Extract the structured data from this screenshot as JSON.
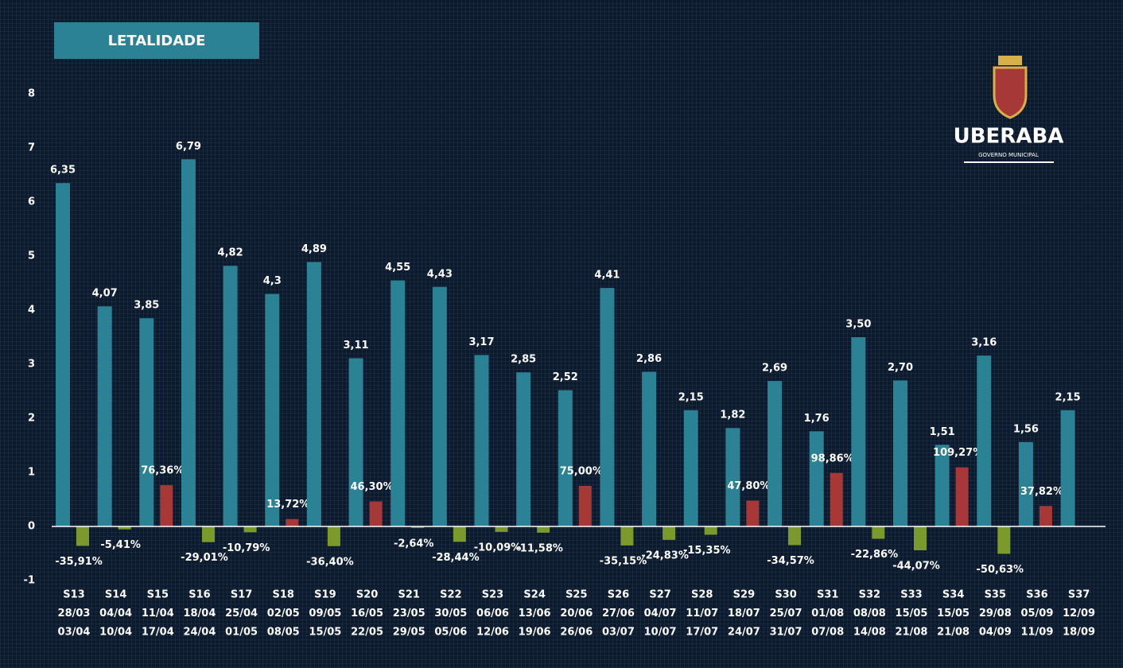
{
  "chart_data": {
    "type": "bar",
    "title": "LETALIDADE",
    "logo": {
      "name": "UBERABA",
      "subtitle": "GOVERNO MUNICIPAL"
    },
    "categories": [
      "S13",
      "S14",
      "S15",
      "S16",
      "S17",
      "S18",
      "S19",
      "S20",
      "S21",
      "S22",
      "S23",
      "S24",
      "S25",
      "S26",
      "S27",
      "S28",
      "S29",
      "S30",
      "S31",
      "S32",
      "S33",
      "S34",
      "S35",
      "S36",
      "S37"
    ],
    "periods_start": [
      "28/03",
      "04/04",
      "11/04",
      "18/04",
      "25/04",
      "02/05",
      "09/05",
      "16/05",
      "23/05",
      "30/05",
      "06/06",
      "13/06",
      "20/06",
      "27/06",
      "04/07",
      "11/07",
      "18/07",
      "25/07",
      "01/08",
      "08/08",
      "15/05",
      "15/05",
      "29/08",
      "05/09",
      "12/09"
    ],
    "periods_end": [
      "03/04",
      "10/04",
      "17/04",
      "24/04",
      "01/05",
      "08/05",
      "15/05",
      "22/05",
      "29/05",
      "05/06",
      "12/06",
      "19/06",
      "26/06",
      "03/07",
      "10/07",
      "17/07",
      "24/07",
      "31/07",
      "07/08",
      "14/08",
      "21/08",
      "21/08",
      "04/09",
      "11/09",
      "18/09"
    ],
    "series": [
      {
        "color": "#2a8294",
        "values": [
          6.35,
          4.07,
          3.85,
          6.79,
          4.82,
          4.3,
          4.89,
          3.11,
          4.55,
          4.43,
          3.17,
          2.85,
          2.52,
          4.41,
          2.86,
          2.15,
          1.82,
          2.69,
          1.76,
          3.5,
          2.7,
          1.51,
          3.16,
          1.56,
          2.15
        ],
        "value_labels": [
          "6,35",
          "4,07",
          "3,85",
          "6,79",
          "4,82",
          "4,3",
          "4,89",
          "3,11",
          "4,55",
          "4,43",
          "3,17",
          "2,85",
          "2,52",
          "4,41",
          "2,86",
          "2,15",
          "1,82",
          "2,69",
          "1,76",
          "3,50",
          "2,70",
          "1,51",
          "3,16",
          "1,56",
          "2,15"
        ]
      },
      {
        "color": "#a63838",
        "negative_color": "#7c9a2c",
        "values": [
          -0.3591,
          -0.0541,
          0.7636,
          -0.2901,
          -0.1079,
          0.1372,
          -0.364,
          0.463,
          -0.0264,
          -0.2844,
          -0.1009,
          -0.1158,
          0.75,
          -0.3515,
          -0.2483,
          -0.1535,
          0.478,
          -0.3457,
          0.9886,
          -0.2286,
          -0.4407,
          1.0927,
          -0.5063,
          0.3782,
          null
        ],
        "value_labels": [
          "-35,91%",
          "-5,41%",
          "76,36%",
          "-29,01%",
          "-10,79%",
          "13,72%",
          "-36,40%",
          "46,30%",
          "-2,64%",
          "-28,44%",
          "-10,09%",
          "-11,58%",
          "75,00%",
          "-35,15%",
          "-24,83%",
          "-15,35%",
          "47,80%",
          "-34,57%",
          "98,86%",
          "-22,86%",
          "-44,07%",
          "109,27%",
          "-50,63%",
          "37,82%",
          null
        ]
      }
    ],
    "ylim": [
      -1,
      8
    ],
    "yticks": [
      -1,
      0,
      1,
      2,
      3,
      4,
      5,
      6,
      7,
      8
    ]
  }
}
